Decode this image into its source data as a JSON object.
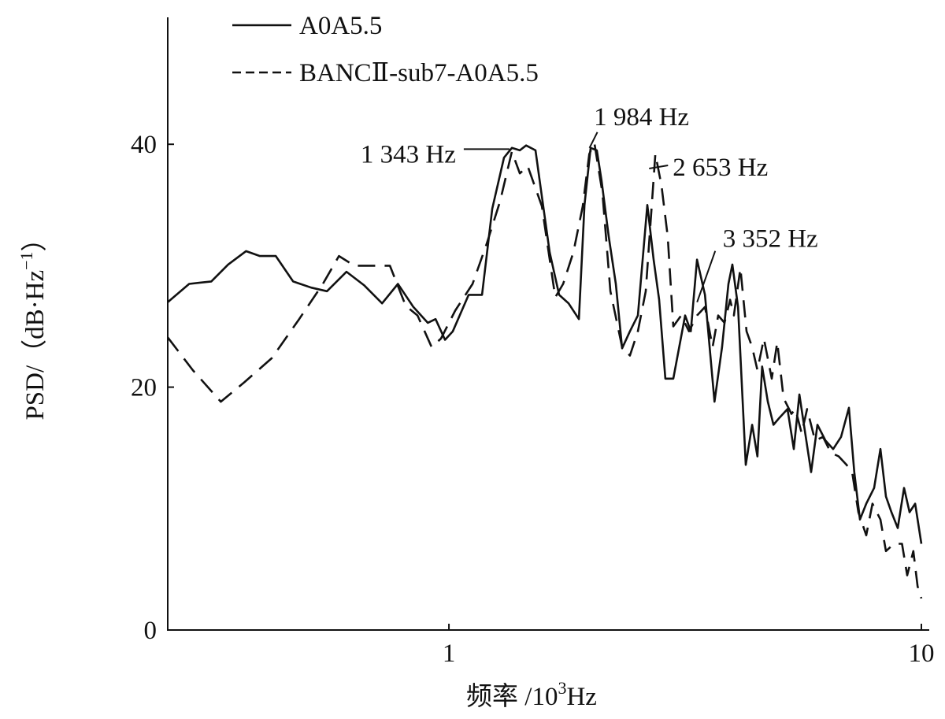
{
  "chart_data": {
    "type": "line",
    "xscale": "log",
    "xlim": [
      0.254,
      10
    ],
    "ylim": [
      0,
      50
    ],
    "xticks": [
      1,
      10
    ],
    "yticks": [
      0,
      20,
      40
    ],
    "xlabel": [
      "频率 /10",
      "3",
      "Hz"
    ],
    "ylabel": [
      "PSD/（dB·Hz",
      "−1",
      "）"
    ],
    "legend": "top-left",
    "series": [
      {
        "name": "A0A5.5",
        "color": "#111111",
        "style": "solid",
        "x": [
          0.254,
          0.282,
          0.314,
          0.341,
          0.372,
          0.398,
          0.43,
          0.468,
          0.511,
          0.552,
          0.607,
          0.661,
          0.722,
          0.78,
          0.841,
          0.902,
          0.937,
          0.981,
          1.019,
          1.101,
          1.175,
          1.235,
          1.308,
          1.359,
          1.413,
          1.457,
          1.525,
          1.573,
          1.634,
          1.711,
          1.792,
          1.884,
          1.936,
          1.995,
          2.056,
          2.104,
          2.179,
          2.256,
          2.326,
          2.416,
          2.512,
          2.63,
          2.712,
          2.786,
          2.872,
          2.985,
          3.162,
          3.251,
          3.35,
          3.483,
          3.648,
          3.786,
          3.905,
          3.981,
          4.093,
          4.249,
          4.383,
          4.498,
          4.603,
          4.732,
          4.864,
          5.012,
          5.207,
          5.37,
          5.518,
          5.662,
          5.843,
          6.026,
          6.266,
          6.506,
          6.761,
          7.026,
          7.211,
          7.413,
          7.645,
          7.943,
          8.19,
          8.414,
          8.644,
          8.913,
          9.19,
          9.441,
          9.701,
          10.0
        ],
        "values": [
          27.0,
          28.5,
          28.7,
          30.1,
          31.2,
          30.8,
          30.8,
          28.7,
          28.2,
          27.9,
          29.5,
          28.4,
          26.9,
          28.5,
          26.6,
          25.3,
          25.6,
          23.9,
          24.6,
          27.6,
          27.6,
          34.7,
          38.9,
          39.7,
          39.5,
          39.9,
          39.5,
          35.7,
          31.1,
          27.6,
          26.9,
          25.6,
          35.0,
          39.7,
          39.5,
          37.0,
          32.4,
          28.5,
          23.2,
          24.6,
          25.9,
          35.0,
          30.5,
          27.2,
          20.7,
          20.7,
          25.9,
          24.6,
          30.5,
          27.6,
          18.8,
          23.3,
          28.5,
          30.1,
          26.6,
          13.6,
          16.9,
          14.3,
          21.7,
          18.8,
          16.9,
          17.5,
          18.2,
          14.9,
          19.4,
          16.5,
          13.0,
          16.9,
          15.6,
          14.9,
          15.9,
          18.3,
          13.0,
          9.1,
          10.4,
          11.7,
          14.9,
          11.0,
          9.7,
          8.4,
          11.7,
          9.7,
          10.4,
          7.1
        ]
      },
      {
        "name": "BANCⅡ-sub7-A0A5.5",
        "color": "#111111",
        "style": "dashed",
        "x": [
          0.254,
          0.287,
          0.329,
          0.369,
          0.422,
          0.482,
          0.541,
          0.585,
          0.631,
          0.681,
          0.75,
          0.81,
          0.858,
          0.919,
          0.962,
          1.031,
          1.122,
          1.202,
          1.283,
          1.359,
          1.413,
          1.468,
          1.573,
          1.679,
          1.745,
          1.834,
          1.92,
          1.982,
          2.032,
          2.113,
          2.197,
          2.326,
          2.416,
          2.512,
          2.61,
          2.735,
          2.818,
          2.905,
          2.985,
          3.102,
          3.222,
          3.35,
          3.483,
          3.615,
          3.715,
          3.831,
          3.936,
          4.01,
          4.14,
          4.266,
          4.383,
          4.498,
          4.642,
          4.822,
          4.955,
          5.109,
          5.309,
          5.412,
          5.58,
          5.729,
          5.957,
          6.191,
          6.434,
          6.683,
          6.944,
          7.136,
          7.356,
          7.645,
          7.88,
          8.19,
          8.414,
          8.75,
          9.099,
          9.333,
          9.616,
          9.817,
          10.0
        ],
        "values": [
          24.1,
          21.4,
          18.8,
          20.4,
          22.4,
          25.6,
          28.5,
          30.8,
          30.0,
          30.0,
          30.0,
          26.7,
          25.9,
          23.3,
          24.0,
          26.3,
          28.5,
          31.8,
          35.3,
          39.4,
          37.6,
          38.2,
          34.9,
          27.4,
          28.5,
          31.1,
          34.9,
          39.2,
          40.1,
          36.0,
          27.9,
          23.3,
          22.6,
          24.6,
          27.9,
          39.2,
          36.6,
          32.4,
          25.0,
          25.9,
          24.6,
          25.9,
          26.6,
          23.3,
          25.9,
          25.3,
          27.2,
          25.9,
          29.8,
          24.6,
          23.3,
          21.4,
          24.0,
          20.7,
          23.7,
          19.1,
          17.8,
          18.2,
          16.2,
          18.2,
          15.6,
          15.9,
          14.6,
          14.3,
          13.6,
          13.0,
          9.7,
          7.8,
          10.4,
          9.1,
          6.5,
          7.1,
          7.1,
          4.5,
          6.5,
          3.6,
          2.6
        ]
      }
    ],
    "annotations": [
      {
        "text": "1 343 Hz",
        "x": 1.343,
        "y": 39.6
      },
      {
        "text": "1 984 Hz",
        "x": 1.984,
        "y": 39.7
      },
      {
        "text": "2 653 Hz",
        "x": 2.653,
        "y": 38.0
      },
      {
        "text": "3 352 Hz",
        "x": 3.352,
        "y": 27.0
      }
    ]
  }
}
